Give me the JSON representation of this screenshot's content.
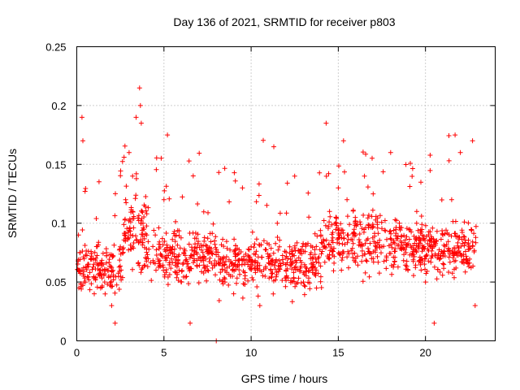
{
  "chart_data": {
    "type": "scatter",
    "title": "Day 136 of 2021, SRMTID for receiver p803",
    "xlabel": "GPS time / hours",
    "ylabel": "SRMTID / TECUs",
    "xlim": [
      0,
      24
    ],
    "ylim": [
      0,
      0.25
    ],
    "xticks": [
      0,
      5,
      10,
      15,
      20
    ],
    "xtick_labels": [
      "0",
      "5",
      "10",
      "15",
      "20"
    ],
    "yticks": [
      0,
      0.05,
      0.1,
      0.15,
      0.2,
      0.25
    ],
    "ytick_labels": [
      "0",
      "0.05",
      "0.1",
      "0.15",
      "0.2",
      "0.25"
    ],
    "grid": true,
    "marker": "+",
    "color": "#ff0000",
    "point_count": 1400,
    "series": [
      {
        "name": "SRMTID",
        "description_points": "representative samples of the dense scatter (hours, TECU)",
        "x": [
          0.1,
          0.2,
          0.3,
          0.35,
          0.5,
          0.8,
          1.0,
          1.3,
          1.6,
          2.0,
          2.2,
          2.5,
          2.8,
          3.0,
          3.2,
          3.4,
          3.6,
          3.65,
          3.7,
          3.8,
          4.0,
          4.5,
          5.0,
          5.2,
          5.5,
          6.0,
          6.5,
          7.0,
          7.5,
          8.0,
          8.5,
          9.0,
          9.5,
          10.0,
          10.5,
          11.0,
          11.3,
          11.5,
          12.0,
          12.5,
          13.0,
          13.5,
          14.0,
          14.3,
          14.5,
          15.0,
          15.3,
          15.5,
          16.0,
          16.5,
          17.0,
          17.5,
          18.0,
          18.5,
          19.0,
          19.5,
          20.0,
          20.5,
          21.0,
          21.5,
          21.7,
          22.0,
          22.5,
          22.7,
          22.85
        ],
        "y": [
          0.09,
          0.06,
          0.19,
          0.17,
          0.05,
          0.07,
          0.04,
          0.06,
          0.05,
          0.03,
          0.015,
          0.08,
          0.12,
          0.16,
          0.14,
          0.19,
          0.215,
          0.2,
          0.185,
          0.1,
          0.07,
          0.09,
          0.12,
          0.175,
          0.08,
          0.05,
          0.015,
          0.07,
          0.06,
          0.0,
          0.05,
          0.04,
          0.13,
          0.08,
          0.03,
          0.07,
          0.165,
          0.1,
          0.06,
          0.14,
          0.05,
          0.07,
          0.09,
          0.185,
          0.11,
          0.13,
          0.17,
          0.12,
          0.09,
          0.14,
          0.07,
          0.08,
          0.16,
          0.1,
          0.06,
          0.11,
          0.05,
          0.015,
          0.09,
          0.12,
          0.175,
          0.16,
          0.08,
          0.17,
          0.03
        ]
      }
    ]
  }
}
